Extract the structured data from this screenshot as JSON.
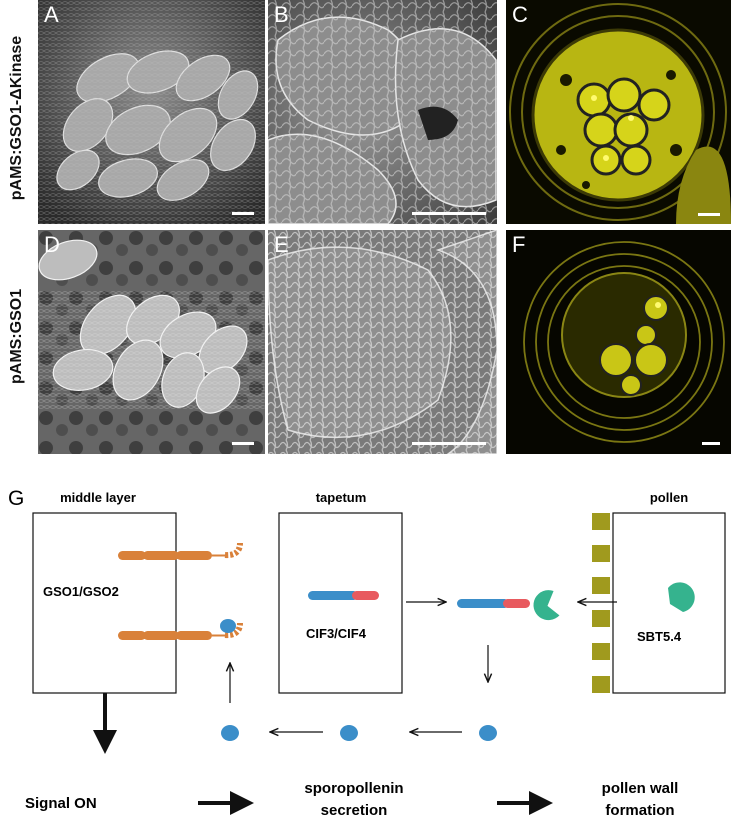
{
  "row_labels": {
    "top": "pAMS:GSO1-ΔKinase",
    "bottom": "pAMS:GSO1"
  },
  "panels": [
    {
      "label": "A",
      "kind": "sem"
    },
    {
      "label": "B",
      "kind": "sem"
    },
    {
      "label": "C",
      "kind": "confocal"
    },
    {
      "label": "D",
      "kind": "sem"
    },
    {
      "label": "E",
      "kind": "sem"
    },
    {
      "label": "F",
      "kind": "confocal"
    }
  ],
  "diagram": {
    "panel_label": "G",
    "headers": {
      "left": "middle layer",
      "center": "tapetum",
      "right": "pollen"
    },
    "box_labels": {
      "left": "GSO1/GSO2",
      "center": "CIF3/CIF4",
      "right": "SBT5.4"
    },
    "flow": {
      "step1": "Signal ON",
      "step2_line1": "sporopollenin",
      "step2_line2": "secretion",
      "step3_line1": "pollen wall",
      "step3_line2": "formation"
    },
    "colors": {
      "receptor": "#d9813a",
      "peptide_blue": "#3b8ec9",
      "peptide_red": "#e85a5f",
      "protease": "#35b38e",
      "pollen_wall": "#a09a1e",
      "confocal_yellow": "#e6e619"
    }
  }
}
